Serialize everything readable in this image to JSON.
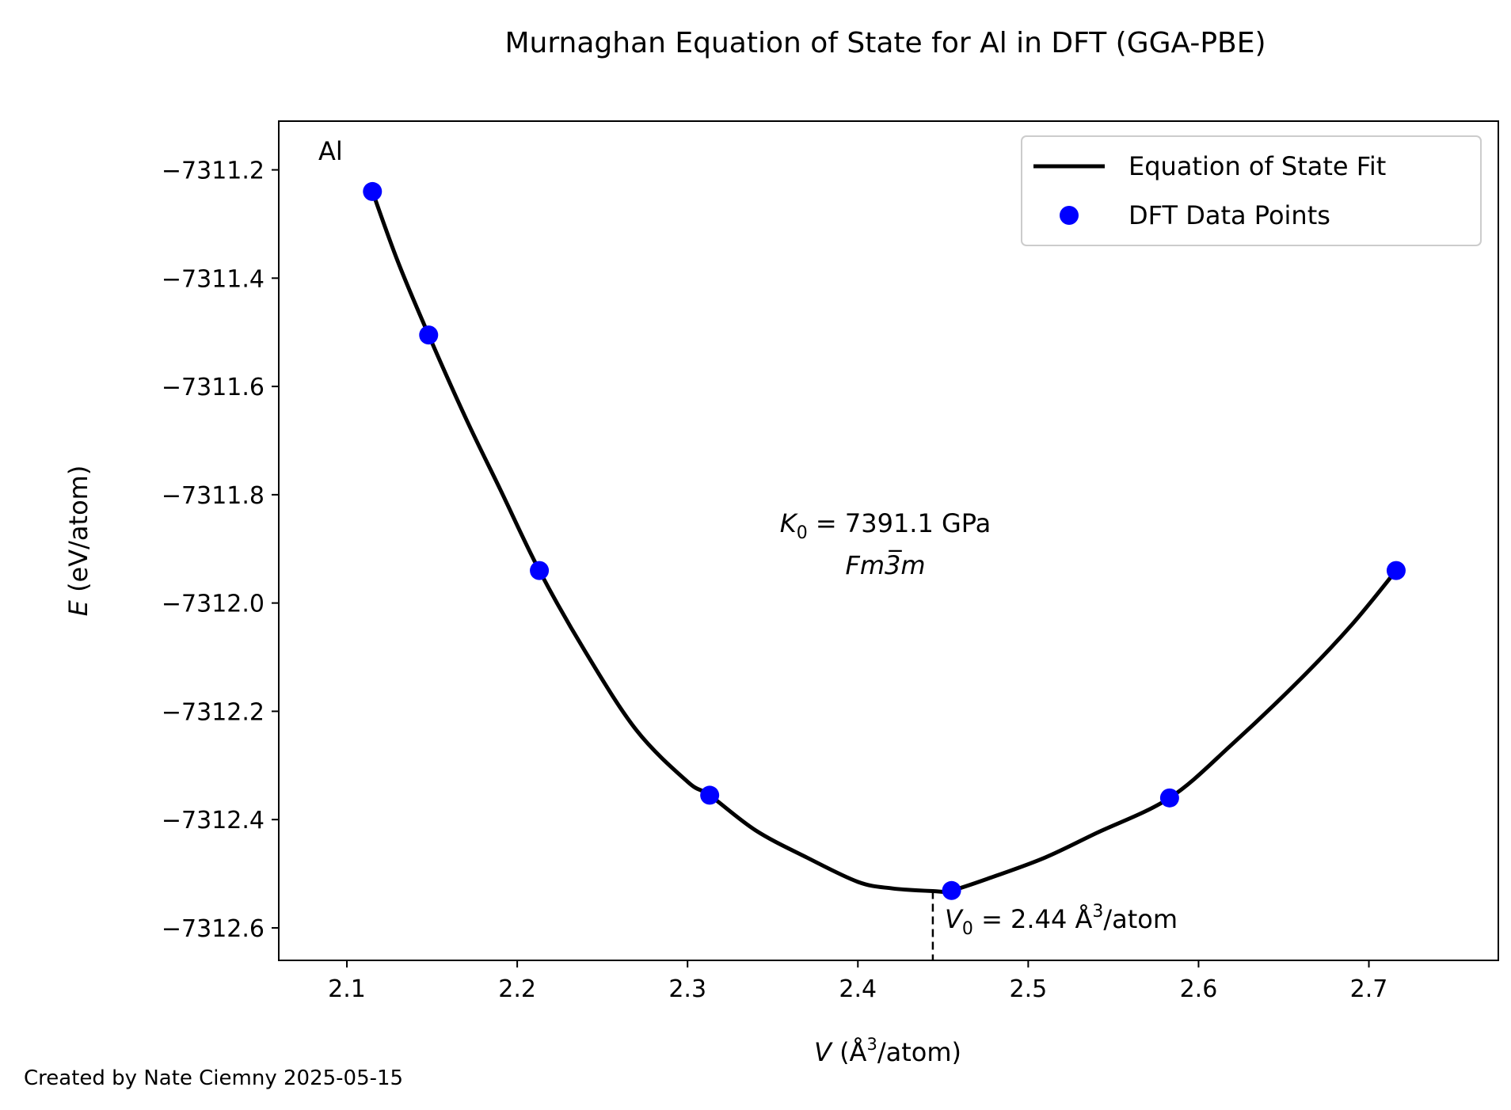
{
  "chart_data": {
    "type": "line",
    "title": "Murnaghan Equation of State for Al in DFT (GGA-PBE)",
    "xlabel": {
      "var": "V",
      "unit_pre": " (Å",
      "sup": "3",
      "unit_post": "/atom)"
    },
    "ylabel": {
      "var": "E",
      "unit": " (eV/atom)"
    },
    "xlim": [
      2.06,
      2.776
    ],
    "ylim": [
      -7312.66,
      -7311.11
    ],
    "xticks": [
      2.1,
      2.2,
      2.3,
      2.4,
      2.5,
      2.6,
      2.7
    ],
    "xtick_labels": [
      "2.1",
      "2.2",
      "2.3",
      "2.4",
      "2.5",
      "2.6",
      "2.7"
    ],
    "yticks": [
      -7311.2,
      -7311.4,
      -7311.6,
      -7311.8,
      -7312.0,
      -7312.2,
      -7312.4,
      -7312.6
    ],
    "ytick_labels": [
      "−7311.2",
      "−7311.4",
      "−7311.6",
      "−7311.8",
      "−7312.0",
      "−7312.2",
      "−7312.4",
      "−7312.6"
    ],
    "series": [
      {
        "name": "Equation of State Fit",
        "style": "line",
        "color": "#000000",
        "x": [
          2.115,
          2.13,
          2.148,
          2.17,
          2.19,
          2.213,
          2.24,
          2.27,
          2.3,
          2.313,
          2.34,
          2.37,
          2.4,
          2.42,
          2.444,
          2.455,
          2.48,
          2.51,
          2.54,
          2.583,
          2.62,
          2.66,
          2.69,
          2.716
        ],
        "y": [
          -7311.24,
          -7311.37,
          -7311.505,
          -7311.66,
          -7311.79,
          -7311.94,
          -7312.09,
          -7312.235,
          -7312.33,
          -7312.355,
          -7312.42,
          -7312.47,
          -7312.515,
          -7312.527,
          -7312.532,
          -7312.531,
          -7312.505,
          -7312.47,
          -7312.425,
          -7312.36,
          -7312.26,
          -7312.14,
          -7312.04,
          -7311.94
        ]
      },
      {
        "name": "DFT Data Points",
        "style": "marker",
        "color": "#0000ff",
        "x": [
          2.115,
          2.148,
          2.213,
          2.313,
          2.455,
          2.583,
          2.716
        ],
        "y": [
          -7311.24,
          -7311.505,
          -7311.94,
          -7312.355,
          -7312.531,
          -7312.36,
          -7311.94
        ]
      }
    ],
    "v0_line": {
      "x": 2.444,
      "y_from": -7312.532
    },
    "legend_placement": "top-right",
    "grid": false,
    "annotations": {
      "element": "Al",
      "k0": {
        "var": "K",
        "sub": "0",
        "text": " = 7391.1 GPa"
      },
      "space_group": "Fm3̅m",
      "v0": {
        "var": "V",
        "sub": "0",
        "pre": " = 2.44 Å",
        "sup": "3",
        "post": "/atom"
      }
    }
  },
  "footer": "Created by Nate Ciemny 2025-05-15"
}
